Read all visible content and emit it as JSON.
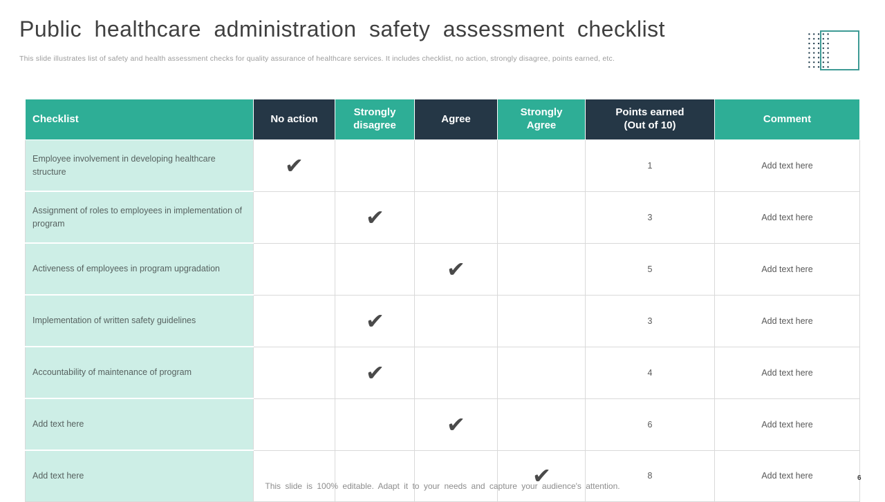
{
  "slide": {
    "title": "Public healthcare administration safety assessment checklist",
    "subtitle": "This slide illustrates list of safety and health assessment checks for quality assurance of healthcare services. It includes checklist, no action, strongly disagree, points earned, etc.",
    "footer": "This slide is 100% editable. Adapt it to your needs and capture your audience's attention.",
    "page_number": "6"
  },
  "colors": {
    "header_teal": "#2eae96",
    "header_navy": "#253746",
    "row_mint": "#cdeee6",
    "checkmark": "#4a4a4a",
    "square_border": "#3d9a94",
    "dots": "#1d3a4a"
  },
  "table": {
    "columns": [
      "Checklist",
      "No action",
      "Strongly\ndisagree",
      "Agree",
      "Strongly\nAgree",
      "Points earned\n(Out of 10)",
      "Comment"
    ],
    "answer_columns": [
      "No action",
      "Strongly disagree",
      "Agree",
      "Strongly Agree"
    ],
    "check_glyph": "✔",
    "rows": [
      {
        "checklist": "Employee involvement in developing healthcare structure",
        "checked": "No action",
        "points": "1",
        "comment": "Add text here"
      },
      {
        "checklist": "Assignment of roles to employees in implementation of program",
        "checked": "Strongly disagree",
        "points": "3",
        "comment": "Add text here"
      },
      {
        "checklist": "Activeness of employees in program upgradation",
        "checked": "Agree",
        "points": "5",
        "comment": "Add text here"
      },
      {
        "checklist": "Implementation of written safety guidelines",
        "checked": "Strongly disagree",
        "points": "3",
        "comment": "Add text here"
      },
      {
        "checklist": "Accountability of maintenance of program",
        "checked": "Strongly disagree",
        "points": "4",
        "comment": "Add text here"
      },
      {
        "checklist": "Add text here",
        "checked": "Agree",
        "points": "6",
        "comment": "Add text here"
      },
      {
        "checklist": "Add text here",
        "checked": "Strongly Agree",
        "points": "8",
        "comment": "Add text here"
      }
    ]
  }
}
